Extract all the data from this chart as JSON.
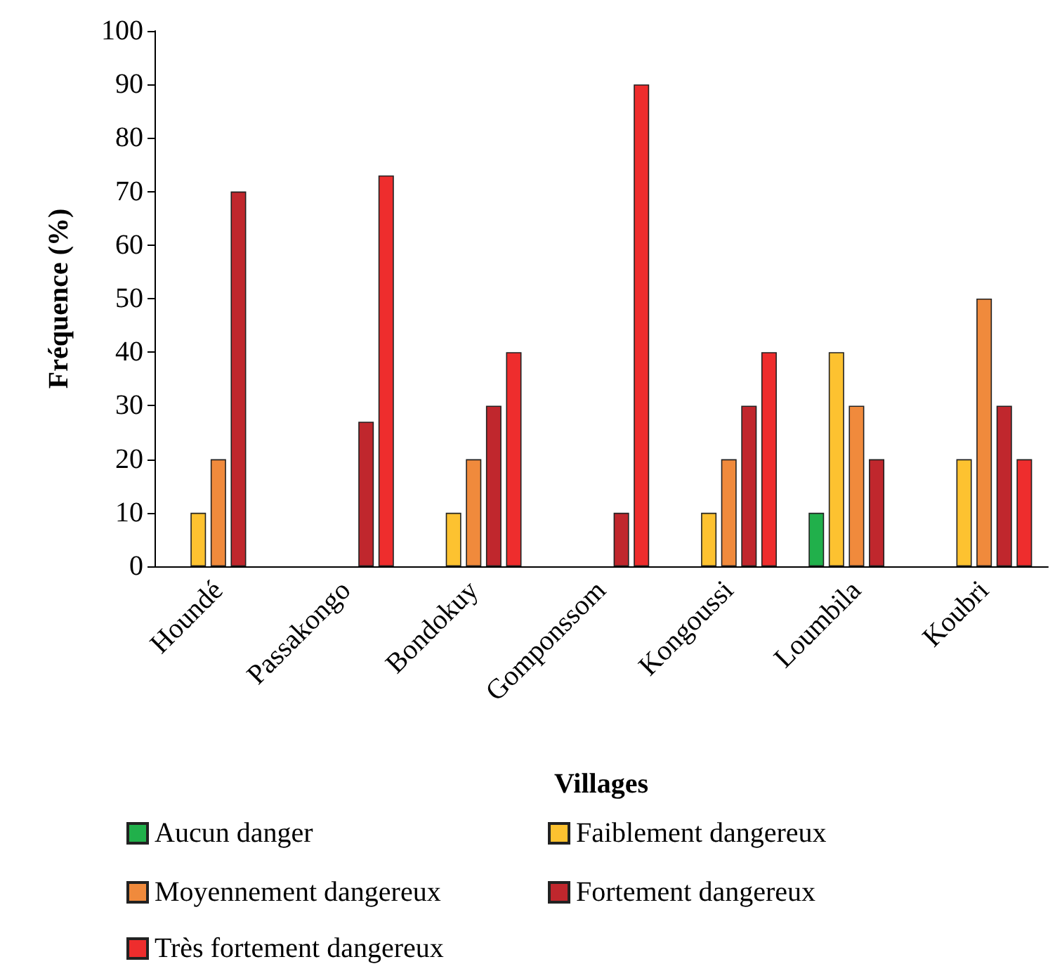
{
  "chart_data": {
    "type": "bar",
    "xlabel": "Villages",
    "ylabel": "Fréquence (%)",
    "categories": [
      "Houndé",
      "Passakongo",
      "Bondokuy",
      "Gomponssom",
      "Kongoussi",
      "Loumbila",
      "Koubri"
    ],
    "series": [
      {
        "name": "Aucun danger",
        "color": "#21b04b",
        "values": [
          0,
          0,
          0,
          0,
          0,
          10,
          0
        ]
      },
      {
        "name": "Faiblement dangereux",
        "color": "#fdc230",
        "values": [
          10,
          0,
          10,
          0,
          10,
          40,
          20
        ]
      },
      {
        "name": "Moyennement dangereux",
        "color": "#f08a3c",
        "values": [
          20,
          0,
          20,
          0,
          20,
          30,
          50
        ]
      },
      {
        "name": "Fortement dangereux",
        "color": "#c0272d",
        "values": [
          70,
          27,
          30,
          10,
          30,
          20,
          30
        ]
      },
      {
        "name": "Très fortement dangereux",
        "color": "#ee2d2d",
        "values": [
          0,
          73,
          40,
          90,
          40,
          0,
          20
        ]
      }
    ],
    "ylim": [
      0,
      100
    ],
    "yticks": [
      0,
      10,
      20,
      30,
      40,
      50,
      60,
      70,
      80,
      90,
      100
    ],
    "grid": false,
    "legend": "bottom"
  }
}
